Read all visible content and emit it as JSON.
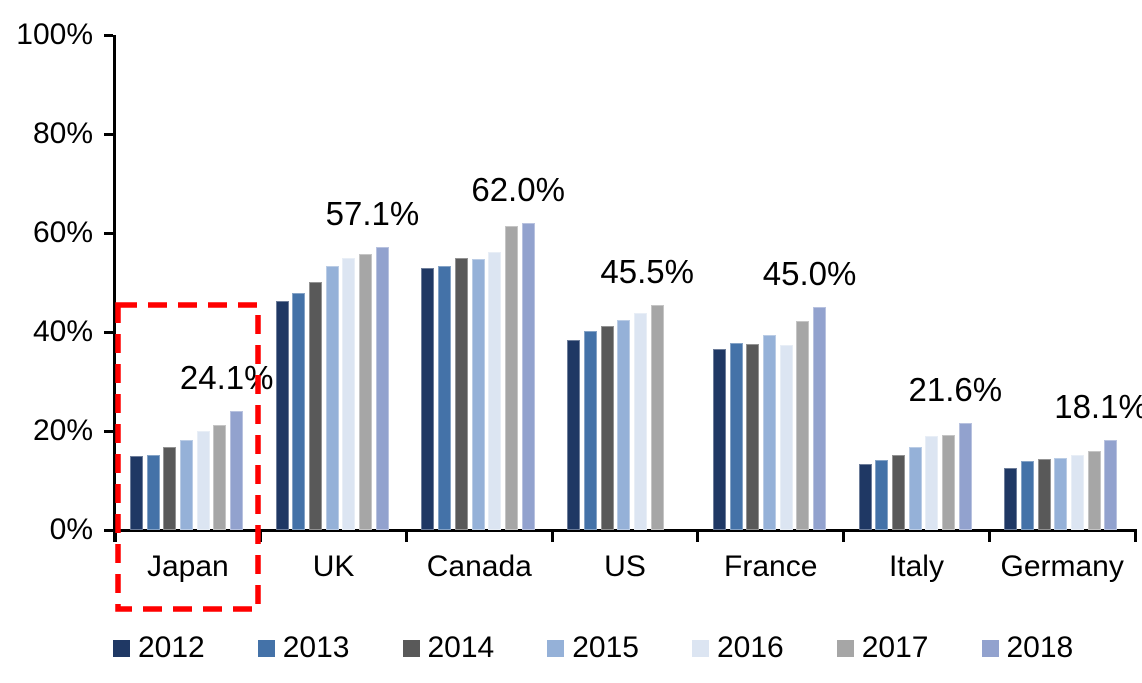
{
  "chart_data": {
    "type": "bar",
    "title": "",
    "xlabel": "",
    "ylabel": "",
    "ylim": [
      0,
      100
    ],
    "grid": false,
    "legend_position": "bottom",
    "categories": [
      "Japan",
      "UK",
      "Canada",
      "US",
      "France",
      "Italy",
      "Germany"
    ],
    "y_tick_labels": [
      "0%",
      "20%",
      "40%",
      "60%",
      "80%",
      "100%"
    ],
    "y_tick_values": [
      0,
      20,
      40,
      60,
      80,
      100
    ],
    "series": [
      {
        "name": "2012",
        "color": "#1F3864",
        "values": [
          14.9,
          46.3,
          53.0,
          38.4,
          36.5,
          13.3,
          12.5
        ]
      },
      {
        "name": "2013",
        "color": "#4472A8",
        "values": [
          15.1,
          47.9,
          53.4,
          40.3,
          37.7,
          14.1,
          14.0
        ]
      },
      {
        "name": "2014",
        "color": "#595959",
        "values": [
          16.8,
          50.1,
          55.0,
          41.3,
          37.6,
          15.2,
          14.3
        ]
      },
      {
        "name": "2015",
        "color": "#95B1D8",
        "values": [
          18.2,
          53.3,
          54.8,
          42.4,
          39.3,
          16.8,
          14.6
        ]
      },
      {
        "name": "2016",
        "color": "#DCE5F2",
        "values": [
          20.0,
          55.0,
          56.2,
          43.8,
          37.4,
          18.9,
          15.2
        ]
      },
      {
        "name": "2017",
        "color": "#A6A6A6",
        "values": [
          21.2,
          55.8,
          61.4,
          45.5,
          42.3,
          19.1,
          15.9
        ]
      },
      {
        "name": "2018",
        "color": "#92A2CE",
        "values": [
          24.1,
          57.1,
          62.0,
          null,
          45.0,
          21.6,
          18.1
        ]
      }
    ],
    "bar_labels": [
      "24.1%",
      "57.1%",
      "62.0%",
      "45.5%",
      "45.0%",
      "21.6%",
      "18.1%"
    ],
    "highlight": {
      "category": "Japan",
      "color": "#FF0000",
      "style": "dashed-rectangle"
    }
  }
}
